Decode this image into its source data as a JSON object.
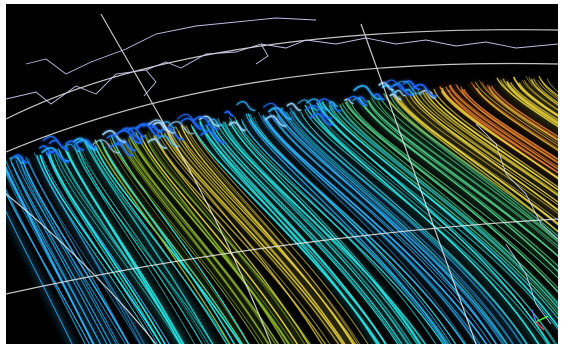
{
  "scene": {
    "subject": "globe-streamline-visualization",
    "background_color": "#000000",
    "frame_color": "#ffffff",
    "colors": {
      "streak_blue": "#1e6cff",
      "streak_light_blue": "#29b6ff",
      "streak_cyan": "#26e5e5",
      "streak_green": "#4fd08a",
      "streak_olive": "#8fb82a",
      "streak_yellow": "#e8d23a",
      "streak_orange": "#e67f2a",
      "globe_grid": "#e8e8e8",
      "coastline": "#cfd6ff"
    },
    "icons": {
      "axis_gizmo": "axis-triad-icon"
    }
  }
}
